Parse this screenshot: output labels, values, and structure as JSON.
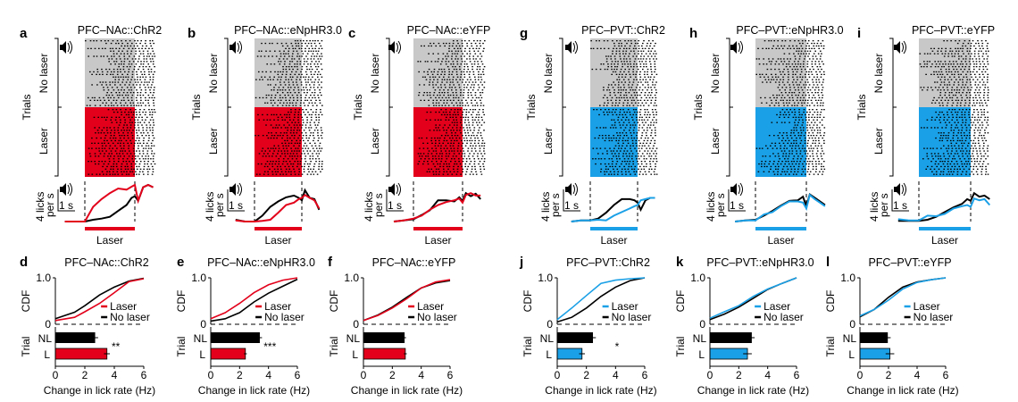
{
  "colors": {
    "red": "#e2001a",
    "blue": "#1aa0e6",
    "gray": "#c8c8c8",
    "black": "#000000"
  },
  "common": {
    "trials_label": "Trials",
    "no_laser_label": "No laser",
    "laser_label": "Laser",
    "rate_scale_label_1": "4 licks",
    "rate_scale_label_2": "per s",
    "time_scale_label": "1 s",
    "cdf_label": "CDF",
    "trial_label": "Trial",
    "nl_label": "NL",
    "l_label": "L",
    "xlabel": "Change in lick rate (Hz)",
    "legend_laser": "Laser",
    "legend_no_laser": "No laser",
    "cdf_tick_top": "1.0",
    "cdf_tick_bottom": "0",
    "x_ticks": [
      "0",
      "2",
      "4",
      "6"
    ],
    "speaker_icon": "speaker-icon"
  },
  "chart_data": [
    {
      "panel": "a",
      "type": "line",
      "title": "PFC–NAc::ChR2",
      "color": "red",
      "laser_duration_s": 3,
      "t": [
        -1.2,
        -0.6,
        0,
        0.5,
        1,
        1.5,
        2,
        2.5,
        2.8,
        3.0,
        3.2,
        3.5,
        3.8,
        4.1
      ],
      "series": [
        {
          "name": "Laser",
          "values": [
            0,
            0,
            0,
            2.5,
            3.8,
            4.8,
            5.6,
            5.4,
            5.9,
            6.2,
            3.5,
            5.8,
            6.2,
            5.8
          ]
        },
        {
          "name": "No laser",
          "values": [
            0,
            0,
            0,
            0.3,
            0.5,
            0.8,
            1.8,
            2.8,
            4.0,
            4.3,
            3.5,
            5.8,
            6.2,
            5.8
          ]
        }
      ]
    },
    {
      "panel": "b",
      "type": "line",
      "title": "PFC–NAc::eNpHR3.0",
      "color": "red",
      "laser_duration_s": 3,
      "t": [
        -1.2,
        -0.6,
        0,
        0.5,
        1,
        1.5,
        2,
        2.5,
        2.8,
        3.0,
        3.2,
        3.5,
        3.8,
        4.1
      ],
      "series": [
        {
          "name": "Laser",
          "values": [
            0.2,
            0,
            0,
            0.1,
            0.3,
            1.5,
            2.8,
            3.2,
            3.8,
            4.0,
            4.5,
            4.0,
            3.6,
            2.2
          ]
        },
        {
          "name": "No laser",
          "values": [
            0.3,
            0,
            0,
            1,
            2.5,
            3.4,
            4.1,
            4.4,
            4.0,
            3.6,
            5.3,
            4.0,
            3.8,
            2.0
          ]
        }
      ]
    },
    {
      "panel": "c",
      "type": "line",
      "title": "PFC–NAc::eYFP",
      "color": "red",
      "laser_duration_s": 3,
      "t": [
        -1.2,
        -0.6,
        0,
        0.5,
        1,
        1.5,
        2,
        2.5,
        2.8,
        3.0,
        3.2,
        3.5,
        3.8,
        4.1
      ],
      "series": [
        {
          "name": "Laser",
          "values": [
            0,
            0.2,
            0.5,
            1,
            2,
            2.8,
            3.3,
            3.6,
            3.9,
            3.2,
            4.5,
            4.8,
            4.4,
            4.4
          ]
        },
        {
          "name": "No laser",
          "values": [
            0,
            0.2,
            0.4,
            1.1,
            1.9,
            3.6,
            3.6,
            3.4,
            4.1,
            3.5,
            4.8,
            4.3,
            4.7,
            3.8
          ]
        }
      ]
    },
    {
      "panel": "g",
      "type": "line",
      "title": "PFC–PVT::ChR2",
      "color": "blue",
      "laser_duration_s": 3,
      "t": [
        -1.2,
        -0.6,
        0,
        0.5,
        1,
        1.5,
        2,
        2.5,
        2.8,
        3.0,
        3.2,
        3.5,
        3.8,
        4.1
      ],
      "series": [
        {
          "name": "Laser",
          "values": [
            0,
            0.2,
            0.2,
            0.3,
            0.2,
            1.0,
            1.6,
            2.2,
            2.6,
            2.8,
            3.6,
            3.8,
            4.0,
            4.0
          ]
        },
        {
          "name": "No laser",
          "values": [
            0,
            0.2,
            0.2,
            0.5,
            1.5,
            2.8,
            3.8,
            3.8,
            3.6,
            3.2,
            2.0,
            3.6,
            4.0,
            4.0
          ]
        }
      ]
    },
    {
      "panel": "h",
      "type": "line",
      "title": "PFC–PVT::eNpHR3.0",
      "color": "blue",
      "laser_duration_s": 3,
      "t": [
        -1.2,
        -0.6,
        0,
        0.5,
        1,
        1.5,
        2,
        2.5,
        2.8,
        3.0,
        3.2,
        3.5,
        3.8,
        4.1
      ],
      "series": [
        {
          "name": "Laser",
          "values": [
            0,
            0.2,
            0.2,
            1.2,
            1.6,
            2.6,
            3.4,
            3.4,
            3.2,
            2.2,
            4.5,
            3.8,
            3.2,
            2.6
          ]
        },
        {
          "name": "No laser",
          "values": [
            0,
            0.2,
            0.3,
            1.0,
            1.8,
            2.7,
            3.5,
            3.6,
            4.2,
            2.6,
            4.6,
            4.0,
            3.4,
            2.8
          ]
        }
      ]
    },
    {
      "panel": "i",
      "type": "line",
      "title": "PFC–PVT::eYFP",
      "color": "blue",
      "laser_duration_s": 3,
      "t": [
        -1.2,
        -0.6,
        0,
        0.5,
        1,
        1.5,
        2,
        2.5,
        2.8,
        3.0,
        3.2,
        3.5,
        3.8,
        4.1
      ],
      "series": [
        {
          "name": "Laser",
          "values": [
            0.4,
            0.2,
            0.2,
            1.0,
            0.9,
            1.3,
            2.2,
            2.6,
            2.8,
            2.5,
            3.9,
            3.6,
            3.8,
            2.8
          ]
        },
        {
          "name": "No laser",
          "values": [
            0.1,
            0.1,
            0.1,
            0.3,
            0.8,
            1.6,
            2.4,
            3.0,
            3.8,
            3.5,
            4.8,
            4.2,
            4.4,
            3.8
          ]
        }
      ]
    },
    {
      "panel": "d",
      "type": "line+bar",
      "title": "PFC–NAc::ChR2",
      "color": "red",
      "xlim": [
        0,
        6
      ],
      "ylim": [
        0,
        1
      ],
      "cdf": [
        {
          "name": "Laser",
          "points": [
            [
              0,
              0.08
            ],
            [
              1.3,
              0.15
            ],
            [
              2,
              0.27
            ],
            [
              3,
              0.45
            ],
            [
              4,
              0.68
            ],
            [
              5,
              0.92
            ],
            [
              6,
              0.98
            ]
          ]
        },
        {
          "name": "No laser",
          "points": [
            [
              0,
              0.12
            ],
            [
              1.3,
              0.26
            ],
            [
              2,
              0.4
            ],
            [
              3,
              0.63
            ],
            [
              4,
              0.8
            ],
            [
              5,
              0.93
            ],
            [
              6,
              0.99
            ]
          ]
        }
      ],
      "bars": {
        "NL": {
          "mean": 2.7,
          "sem": 0.2
        },
        "L": {
          "mean": 3.5,
          "sem": 0.2
        }
      },
      "significance": "**"
    },
    {
      "panel": "e",
      "type": "line+bar",
      "title": "PFC–NAc::eNpHR3.0",
      "color": "red",
      "xlim": [
        0,
        6
      ],
      "ylim": [
        0,
        1
      ],
      "cdf": [
        {
          "name": "Laser",
          "points": [
            [
              0,
              0.12
            ],
            [
              1,
              0.25
            ],
            [
              2,
              0.45
            ],
            [
              3,
              0.68
            ],
            [
              4,
              0.85
            ],
            [
              5,
              0.95
            ],
            [
              6,
              1.0
            ]
          ]
        },
        {
          "name": "No laser",
          "points": [
            [
              0,
              0.07
            ],
            [
              1,
              0.12
            ],
            [
              2,
              0.25
            ],
            [
              3,
              0.48
            ],
            [
              4,
              0.67
            ],
            [
              5,
              0.82
            ],
            [
              6,
              0.97
            ]
          ]
        }
      ],
      "bars": {
        "NL": {
          "mean": 3.4,
          "sem": 0.15
        },
        "L": {
          "mean": 2.4,
          "sem": 0.1
        }
      },
      "significance": "***"
    },
    {
      "panel": "f",
      "type": "line+bar",
      "title": "PFC–NAc::eYFP",
      "color": "red",
      "xlim": [
        0,
        6
      ],
      "ylim": [
        0,
        1
      ],
      "cdf": [
        {
          "name": "Laser",
          "points": [
            [
              0,
              0.08
            ],
            [
              1,
              0.19
            ],
            [
              2,
              0.35
            ],
            [
              3,
              0.55
            ],
            [
              4,
              0.78
            ],
            [
              5,
              0.91
            ],
            [
              6,
              0.96
            ]
          ]
        },
        {
          "name": "No laser",
          "points": [
            [
              0,
              0.08
            ],
            [
              1,
              0.2
            ],
            [
              2,
              0.37
            ],
            [
              3,
              0.58
            ],
            [
              4,
              0.78
            ],
            [
              5,
              0.89
            ],
            [
              6,
              0.94
            ]
          ]
        }
      ],
      "bars": {
        "NL": {
          "mean": 2.85,
          "sem": 0.1
        },
        "L": {
          "mean": 2.9,
          "sem": 0.1
        }
      },
      "significance": ""
    },
    {
      "panel": "j",
      "type": "line+bar",
      "title": "PFC–PVT::ChR2",
      "color": "blue",
      "xlim": [
        0,
        6
      ],
      "ylim": [
        0,
        1
      ],
      "cdf": [
        {
          "name": "Laser",
          "points": [
            [
              0,
              0.1
            ],
            [
              1,
              0.35
            ],
            [
              2,
              0.62
            ],
            [
              3,
              0.88
            ],
            [
              4,
              0.95
            ],
            [
              5,
              0.98
            ],
            [
              6,
              1
            ]
          ]
        },
        {
          "name": "No laser",
          "points": [
            [
              0,
              0.05
            ],
            [
              1,
              0.15
            ],
            [
              2,
              0.35
            ],
            [
              3,
              0.6
            ],
            [
              4,
              0.8
            ],
            [
              5,
              0.94
            ],
            [
              6,
              1
            ]
          ]
        }
      ],
      "bars": {
        "NL": {
          "mean": 2.45,
          "sem": 0.2
        },
        "L": {
          "mean": 1.7,
          "sem": 0.2
        }
      },
      "significance": "*"
    },
    {
      "panel": "k",
      "type": "line+bar",
      "title": "PFC–PVT::eNpHR3.0",
      "color": "blue",
      "xlim": [
        0,
        6
      ],
      "ylim": [
        0,
        1
      ],
      "cdf": [
        {
          "name": "Laser",
          "points": [
            [
              0,
              0.13
            ],
            [
              1,
              0.27
            ],
            [
              2,
              0.4
            ],
            [
              3,
              0.6
            ],
            [
              4,
              0.76
            ],
            [
              5,
              0.88
            ],
            [
              6,
              1.0
            ]
          ]
        },
        {
          "name": "No laser",
          "points": [
            [
              0,
              0.1
            ],
            [
              1,
              0.22
            ],
            [
              2,
              0.37
            ],
            [
              3,
              0.56
            ],
            [
              4,
              0.75
            ],
            [
              5,
              0.88
            ],
            [
              6,
              1.0
            ]
          ]
        }
      ],
      "bars": {
        "NL": {
          "mean": 2.9,
          "sem": 0.2
        },
        "L": {
          "mean": 2.6,
          "sem": 0.3
        }
      },
      "significance": ""
    },
    {
      "panel": "l",
      "type": "line+bar",
      "title": "PFC–PVT::eYFP",
      "color": "blue",
      "xlim": [
        0,
        6
      ],
      "ylim": [
        0,
        1
      ],
      "cdf": [
        {
          "name": "Laser",
          "points": [
            [
              0,
              0.18
            ],
            [
              1,
              0.32
            ],
            [
              2,
              0.52
            ],
            [
              3,
              0.76
            ],
            [
              4,
              0.9
            ],
            [
              5,
              0.96
            ],
            [
              6,
              1
            ]
          ]
        },
        {
          "name": "No laser",
          "points": [
            [
              0,
              0.16
            ],
            [
              1,
              0.32
            ],
            [
              2,
              0.58
            ],
            [
              3,
              0.8
            ],
            [
              4,
              0.91
            ],
            [
              5,
              0.96
            ],
            [
              6,
              1
            ]
          ]
        }
      ],
      "bars": {
        "NL": {
          "mean": 1.95,
          "sem": 0.2
        },
        "L": {
          "mean": 2.1,
          "sem": 0.3
        }
      },
      "significance": ""
    }
  ]
}
